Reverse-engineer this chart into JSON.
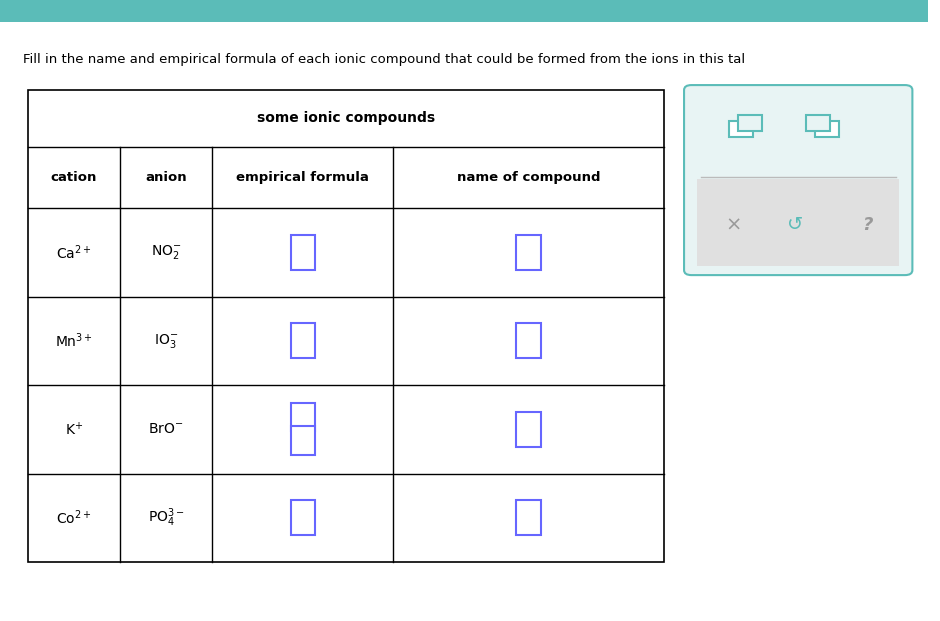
{
  "title_bar_color": "#5bbcb8",
  "background_color": "#ffffff",
  "header_text": "Fill in the name and empirical formula of each ionic compound that could be formed from the ions in this tal",
  "table_title": "some ionic compounds",
  "col_headers": [
    "cation",
    "anion",
    "empirical formula",
    "name of compound"
  ],
  "rows": [
    {
      "cation": "Ca$^{2+}$",
      "anion": "NO$_2^{-}$"
    },
    {
      "cation": "Mn$^{3+}$",
      "anion": "IO$_3^{-}$"
    },
    {
      "cation": "K$^{+}$",
      "anion": "BrO$^{-}$"
    },
    {
      "cation": "Co$^{2+}$",
      "anion": "PO$_4^{3-}$"
    }
  ],
  "input_box_color": "#6666ff",
  "text_color": "#000000",
  "side_panel_color": "#e8f4f4",
  "side_panel_border": "#5bbcb8"
}
